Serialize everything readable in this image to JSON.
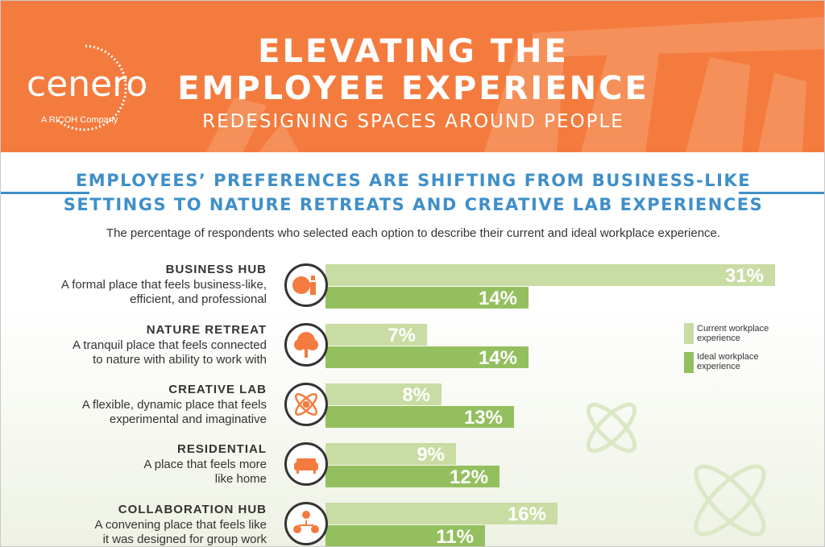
{
  "header": {
    "logo_text": "cenero",
    "logo_sub": "A RICOH Company",
    "title_line1": "ELEVATING THE",
    "title_line2": "EMPLOYEE EXPERIENCE",
    "subtitle": "REDESIGNING SPACES AROUND PEOPLE"
  },
  "section": {
    "heading_line1": "EMPLOYEES’ PREFERENCES ARE SHIFTING FROM BUSINESS-LIKE",
    "heading_line2": "SETTINGS TO NATURE RETREATS AND CREATIVE LAB EXPERIENCES",
    "description": "The percentage of respondents who selected each option to describe their current and ideal workplace experience."
  },
  "colors": {
    "banner": "#f47b3e",
    "heading": "#3f8fc9",
    "current": "#c8dca3",
    "ideal": "#94bf5e",
    "icon": "#f47b3e"
  },
  "chart_data": {
    "type": "bar",
    "orientation": "horizontal",
    "unit": "%",
    "categories": [
      {
        "name": "BUSINESS HUB",
        "line1": "A formal place that feels business-like,",
        "line2": "efficient, and professional",
        "icon": "presenter-icon"
      },
      {
        "name": "NATURE RETREAT",
        "line1": "A tranquil place that feels connected",
        "line2": "to nature with ability to work with",
        "icon": "tree-icon"
      },
      {
        "name": "CREATIVE LAB",
        "line1": "A flexible, dynamic place that feels",
        "line2": "experimental  and imaginative",
        "icon": "atom-icon"
      },
      {
        "name": "RESIDENTIAL",
        "line1": "A place that feels more",
        "line2": "like home",
        "icon": "sofa-icon"
      },
      {
        "name": "COLLABORATION HUB",
        "line1": "A convening place that feels like",
        "line2": "it was designed for group work",
        "icon": "team-icon"
      }
    ],
    "series": [
      {
        "name": "Current workplace experience",
        "legend_line1": "Current workplace",
        "legend_line2": "experience",
        "values": [
          31,
          7,
          8,
          9,
          16
        ],
        "labels": [
          "31%",
          "7%",
          "8%",
          "9%",
          "16%"
        ]
      },
      {
        "name": "Ideal workplace experience",
        "legend_line1": "Ideal workplace",
        "legend_line2": "experience",
        "values": [
          14,
          14,
          13,
          12,
          11
        ],
        "labels": [
          "14%",
          "14%",
          "13%",
          "12%",
          "11%"
        ]
      }
    ],
    "legend_position": "right",
    "grid": false
  }
}
